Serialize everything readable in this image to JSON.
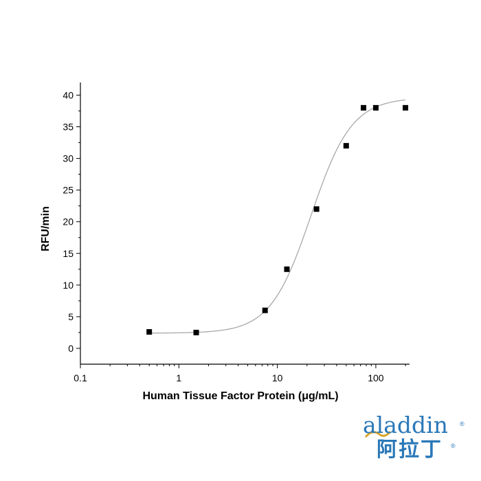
{
  "chart_data": {
    "type": "scatter",
    "xlabel": "Human Tissue Factor Protein (μg/mL)",
    "ylabel": "RFU/min",
    "xscale": "log",
    "xlim": [
      0.1,
      220
    ],
    "ylim": [
      -2.5,
      42
    ],
    "xticks": [
      0.1,
      1,
      10,
      100
    ],
    "xtick_labels": [
      "0.1",
      "1",
      "10",
      "100"
    ],
    "yticks": [
      0,
      5,
      10,
      15,
      20,
      25,
      30,
      35,
      40
    ],
    "ytick_labels": [
      "0",
      "5",
      "10",
      "15",
      "20",
      "25",
      "30",
      "35",
      "40"
    ],
    "grid": false,
    "points": [
      {
        "x": 0.5,
        "y": 2.6
      },
      {
        "x": 1.5,
        "y": 2.5
      },
      {
        "x": 7.5,
        "y": 6.0
      },
      {
        "x": 12.5,
        "y": 12.5
      },
      {
        "x": 25,
        "y": 22.0
      },
      {
        "x": 50,
        "y": 32.0
      },
      {
        "x": 75,
        "y": 38.0
      },
      {
        "x": 100,
        "y": 38.0
      },
      {
        "x": 200,
        "y": 38.0
      }
    ],
    "fit": {
      "type": "4PL",
      "bottom": 2.4,
      "top": 39.6,
      "ec50": 22,
      "hill": 2.1
    },
    "marker_color": "#000000",
    "fit_color": "#a8a8a8"
  },
  "logo": {
    "word": "aladdin",
    "cn": "阿拉丁",
    "reg": "®",
    "color": "#2a78b8",
    "accent": "#d9a62a"
  }
}
